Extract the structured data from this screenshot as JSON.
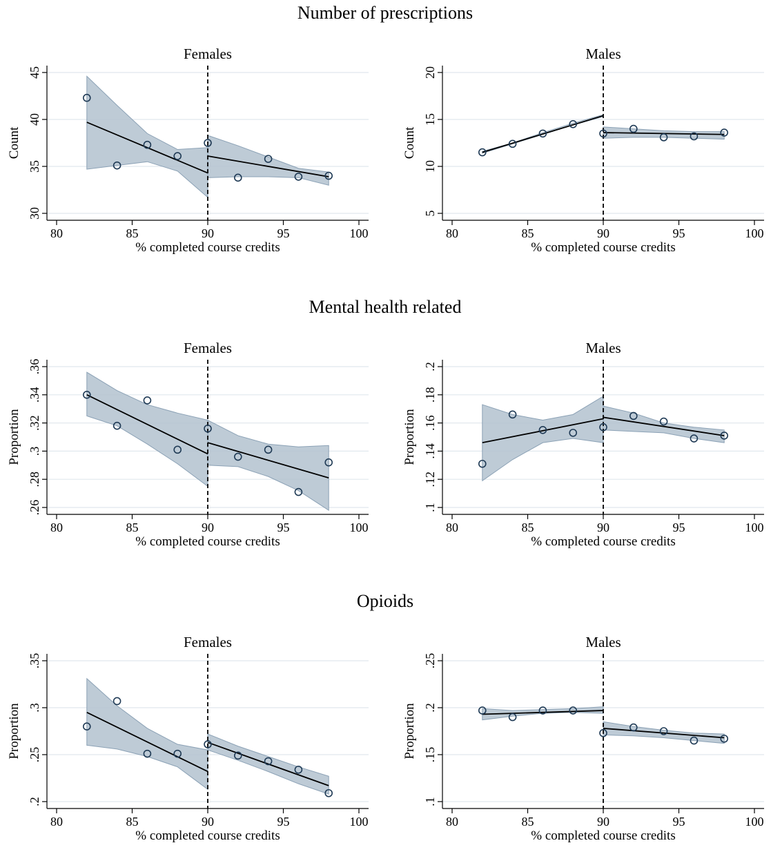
{
  "figure": {
    "row_titles": [
      "Number of prescriptions",
      "Mental health related",
      "Opioids"
    ],
    "cutoff": 90
  },
  "colors": {
    "ci_fill": "#b3c2cf",
    "ci_stroke": "#8ba1b5",
    "marker": "#1f3a55",
    "line": "#000000",
    "grid": "#e1e8ee"
  },
  "chart_data": [
    {
      "type": "scatter",
      "title": "Females",
      "group": "Number of prescriptions",
      "xlabel": "% completed course credits",
      "ylabel": "Count",
      "xlim": [
        80,
        100
      ],
      "xticks": [
        80,
        85,
        90,
        95,
        100
      ],
      "ylim": [
        30,
        45
      ],
      "yticks": [
        30,
        35,
        40,
        45
      ],
      "ytick_labels": [
        "30",
        "35",
        "40",
        "45"
      ],
      "grid": true,
      "cutoff": 90,
      "points": {
        "x": [
          82,
          84,
          86,
          88,
          90,
          92,
          94,
          96,
          98
        ],
        "y": [
          42.3,
          35.1,
          37.3,
          36.1,
          37.5,
          33.8,
          35.8,
          33.9,
          34.0
        ]
      },
      "fit_left": {
        "x": [
          82,
          90
        ],
        "y": [
          39.7,
          34.3
        ]
      },
      "fit_right": {
        "x": [
          90,
          98
        ],
        "y": [
          36.1,
          33.9
        ]
      },
      "ci_left": {
        "x": [
          82,
          84,
          86,
          88,
          90
        ],
        "lower": [
          34.7,
          35.1,
          35.5,
          34.5,
          31.7
        ],
        "upper": [
          44.6,
          41.5,
          38.5,
          36.8,
          37.0
        ]
      },
      "ci_right": {
        "x": [
          90,
          92,
          94,
          96,
          98
        ],
        "lower": [
          33.8,
          33.9,
          33.9,
          33.8,
          33.0
        ],
        "upper": [
          38.3,
          37.2,
          36.0,
          34.8,
          34.4
        ]
      }
    },
    {
      "type": "scatter",
      "title": "Males",
      "group": "Number of prescriptions",
      "xlabel": "% completed course credits",
      "ylabel": "Count",
      "xlim": [
        80,
        100
      ],
      "xticks": [
        80,
        85,
        90,
        95,
        100
      ],
      "ylim": [
        5,
        20
      ],
      "yticks": [
        5,
        10,
        15,
        20
      ],
      "ytick_labels": [
        "5",
        "10",
        "15",
        "20"
      ],
      "grid": true,
      "cutoff": 90,
      "points": {
        "x": [
          82,
          84,
          86,
          88,
          90,
          92,
          94,
          96,
          98
        ],
        "y": [
          11.5,
          12.4,
          13.5,
          14.5,
          13.5,
          14.0,
          13.1,
          13.2,
          13.6
        ]
      },
      "fit_left": {
        "x": [
          82,
          90
        ],
        "y": [
          11.5,
          15.4
        ]
      },
      "fit_right": {
        "x": [
          90,
          98
        ],
        "y": [
          13.6,
          13.4
        ]
      },
      "ci_left": {
        "x": [
          82,
          84,
          86,
          88,
          90
        ],
        "lower": [
          11.4,
          12.4,
          13.4,
          14.4,
          15.3
        ],
        "upper": [
          11.6,
          12.5,
          13.6,
          14.6,
          15.5
        ]
      },
      "ci_right": {
        "x": [
          90,
          92,
          94,
          96,
          98
        ],
        "lower": [
          13.0,
          13.1,
          13.1,
          13.0,
          12.9
        ],
        "upper": [
          14.2,
          14.0,
          13.8,
          13.7,
          13.7
        ]
      }
    },
    {
      "type": "scatter",
      "title": "Females",
      "group": "Mental health related",
      "xlabel": "% completed course credits",
      "ylabel": "Proportion",
      "xlim": [
        80,
        100
      ],
      "xticks": [
        80,
        85,
        90,
        95,
        100
      ],
      "ylim": [
        0.26,
        0.36
      ],
      "yticks": [
        0.26,
        0.28,
        0.3,
        0.32,
        0.34,
        0.36
      ],
      "ytick_labels": [
        ".26",
        ".28",
        ".3",
        ".32",
        ".34",
        ".36"
      ],
      "grid": true,
      "cutoff": 90,
      "points": {
        "x": [
          82,
          84,
          86,
          88,
          90,
          92,
          94,
          96,
          98
        ],
        "y": [
          0.34,
          0.318,
          0.336,
          0.301,
          0.316,
          0.296,
          0.301,
          0.271,
          0.292
        ]
      },
      "fit_left": {
        "x": [
          82,
          90
        ],
        "y": [
          0.34,
          0.298
        ]
      },
      "fit_right": {
        "x": [
          90,
          98
        ],
        "y": [
          0.306,
          0.281
        ]
      },
      "ci_left": {
        "x": [
          82,
          84,
          86,
          88,
          90
        ],
        "lower": [
          0.325,
          0.318,
          0.305,
          0.291,
          0.275
        ],
        "upper": [
          0.356,
          0.343,
          0.333,
          0.327,
          0.322
        ]
      },
      "ci_right": {
        "x": [
          90,
          92,
          94,
          96,
          98
        ],
        "lower": [
          0.29,
          0.289,
          0.282,
          0.272,
          0.258
        ],
        "upper": [
          0.322,
          0.311,
          0.305,
          0.303,
          0.304
        ]
      }
    },
    {
      "type": "scatter",
      "title": "Males",
      "group": "Mental health related",
      "xlabel": "% completed course credits",
      "ylabel": "Proportion",
      "xlim": [
        80,
        100
      ],
      "xticks": [
        80,
        85,
        90,
        95,
        100
      ],
      "ylim": [
        0.1,
        0.2
      ],
      "yticks": [
        0.1,
        0.12,
        0.14,
        0.16,
        0.18,
        0.2
      ],
      "ytick_labels": [
        ".1",
        ".12",
        ".14",
        ".16",
        ".18",
        ".2"
      ],
      "grid": true,
      "cutoff": 90,
      "points": {
        "x": [
          82,
          84,
          86,
          88,
          90,
          92,
          94,
          96,
          98
        ],
        "y": [
          0.131,
          0.166,
          0.155,
          0.153,
          0.157,
          0.165,
          0.161,
          0.149,
          0.151
        ]
      },
      "fit_left": {
        "x": [
          82,
          90
        ],
        "y": [
          0.146,
          0.163
        ]
      },
      "fit_right": {
        "x": [
          90,
          98
        ],
        "y": [
          0.164,
          0.151
        ]
      },
      "ci_left": {
        "x": [
          82,
          84,
          86,
          88,
          90
        ],
        "lower": [
          0.119,
          0.134,
          0.146,
          0.149,
          0.146
        ],
        "upper": [
          0.173,
          0.166,
          0.162,
          0.166,
          0.179
        ]
      },
      "ci_right": {
        "x": [
          90,
          92,
          94,
          96,
          98
        ],
        "lower": [
          0.155,
          0.154,
          0.153,
          0.149,
          0.146
        ],
        "upper": [
          0.172,
          0.167,
          0.16,
          0.157,
          0.155
        ]
      }
    },
    {
      "type": "scatter",
      "title": "Females",
      "group": "Opioids",
      "xlabel": "% completed course credits",
      "ylabel": "Proportion",
      "xlim": [
        80,
        100
      ],
      "xticks": [
        80,
        85,
        90,
        95,
        100
      ],
      "ylim": [
        0.2,
        0.35
      ],
      "yticks": [
        0.2,
        0.25,
        0.3,
        0.35
      ],
      "ytick_labels": [
        ".2",
        ".25",
        ".3",
        ".35"
      ],
      "grid": true,
      "cutoff": 90,
      "points": {
        "x": [
          82,
          84,
          86,
          88,
          90,
          92,
          94,
          96,
          98
        ],
        "y": [
          0.28,
          0.307,
          0.251,
          0.251,
          0.261,
          0.249,
          0.243,
          0.234,
          0.209
        ]
      },
      "fit_left": {
        "x": [
          82,
          90
        ],
        "y": [
          0.295,
          0.232
        ]
      },
      "fit_right": {
        "x": [
          90,
          98
        ],
        "y": [
          0.263,
          0.217
        ]
      },
      "ci_left": {
        "x": [
          82,
          84,
          86,
          88,
          90
        ],
        "lower": [
          0.26,
          0.256,
          0.248,
          0.237,
          0.213
        ],
        "upper": [
          0.331,
          0.302,
          0.278,
          0.261,
          0.255
        ]
      },
      "ci_right": {
        "x": [
          90,
          92,
          94,
          96,
          98
        ],
        "lower": [
          0.255,
          0.244,
          0.232,
          0.219,
          0.208
        ],
        "upper": [
          0.272,
          0.259,
          0.248,
          0.237,
          0.227
        ]
      }
    },
    {
      "type": "scatter",
      "title": "Males",
      "group": "Opioids",
      "xlabel": "% completed course credits",
      "ylabel": "Proportion",
      "xlim": [
        80,
        100
      ],
      "xticks": [
        80,
        85,
        90,
        95,
        100
      ],
      "ylim": [
        0.1,
        0.25
      ],
      "yticks": [
        0.1,
        0.15,
        0.2,
        0.25
      ],
      "ytick_labels": [
        ".1",
        ".15",
        ".2",
        ".25"
      ],
      "grid": true,
      "cutoff": 90,
      "points": {
        "x": [
          82,
          84,
          86,
          88,
          90,
          92,
          94,
          96,
          98
        ],
        "y": [
          0.197,
          0.19,
          0.197,
          0.197,
          0.173,
          0.179,
          0.175,
          0.165,
          0.167
        ]
      },
      "fit_left": {
        "x": [
          82,
          90
        ],
        "y": [
          0.193,
          0.197
        ]
      },
      "fit_right": {
        "x": [
          90,
          98
        ],
        "y": [
          0.178,
          0.168
        ]
      },
      "ci_left": {
        "x": [
          82,
          84,
          86,
          88,
          90
        ],
        "lower": [
          0.187,
          0.191,
          0.194,
          0.195,
          0.194
        ],
        "upper": [
          0.199,
          0.197,
          0.198,
          0.199,
          0.201
        ]
      },
      "ci_right": {
        "x": [
          90,
          92,
          94,
          96,
          98
        ],
        "lower": [
          0.171,
          0.17,
          0.168,
          0.165,
          0.162
        ],
        "upper": [
          0.185,
          0.18,
          0.176,
          0.173,
          0.172
        ]
      }
    }
  ]
}
